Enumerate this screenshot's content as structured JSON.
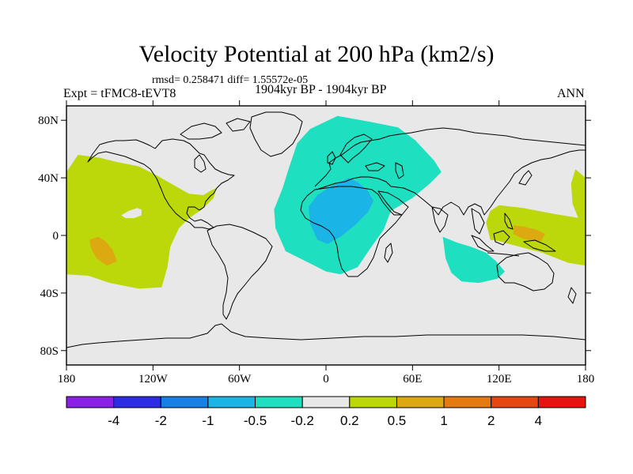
{
  "title": "Velocity Potential at 200 hPa (km2/s)",
  "stats_line": "rmsd= 0.258471 diff= 1.55572e-05",
  "left_label": "Expt = tFMC8-tEVT8",
  "center_label": "1904kyr BP - 1904kyr BP",
  "right_label": "ANN",
  "colors": {
    "background_field": "#e8e8e8",
    "pos_0_2_to_0_5": "#bcd70a",
    "pos_0_5_to_1": "#dcaa10",
    "neg_0_5_to_0_2": "#1ee0c0",
    "neg_1_to_0_5": "#1ab4e6"
  },
  "chart_data": {
    "type": "contour-map",
    "projection": "cylindrical-equidistant",
    "lon_range": [
      -180,
      180
    ],
    "lat_range": [
      -90,
      90
    ],
    "x_ticks": [
      {
        "lon": -180,
        "label": "180"
      },
      {
        "lon": -120,
        "label": "120W"
      },
      {
        "lon": -60,
        "label": "60W"
      },
      {
        "lon": 0,
        "label": "0"
      },
      {
        "lon": 60,
        "label": "60E"
      },
      {
        "lon": 120,
        "label": "120E"
      },
      {
        "lon": 180,
        "label": "180"
      }
    ],
    "y_ticks": [
      {
        "lat": 80,
        "label": "80N"
      },
      {
        "lat": 40,
        "label": "40N"
      },
      {
        "lat": 0,
        "label": "0"
      },
      {
        "lat": -40,
        "label": "40S"
      },
      {
        "lat": -80,
        "label": "80S"
      }
    ],
    "colorbar": {
      "colors": [
        "#8a1fe8",
        "#2c2ce6",
        "#1680e6",
        "#1ab4e6",
        "#1ee0c0",
        "#e8e8e8",
        "#bcd70a",
        "#dcaa10",
        "#e67a10",
        "#e64610",
        "#e61410"
      ],
      "labels": [
        "-4",
        "-2",
        "-1",
        "-0.5",
        "-0.2",
        "0.2",
        "0.5",
        "1",
        "2",
        "4"
      ]
    },
    "regions": [
      {
        "name": "pacific-positive",
        "level": "0.2 to 0.5",
        "color": "#bcd70a",
        "lonlat": [
          [
            -180,
            44
          ],
          [
            -172,
            56
          ],
          [
            -157,
            54
          ],
          [
            -145,
            51
          ],
          [
            -130,
            48
          ],
          [
            -118,
            42
          ],
          [
            -104,
            34
          ],
          [
            -95,
            29
          ],
          [
            -85,
            28
          ],
          [
            -80,
            31
          ],
          [
            -76,
            33
          ],
          [
            -78,
            26
          ],
          [
            -86,
            18
          ],
          [
            -95,
            12
          ],
          [
            -102,
            5
          ],
          [
            -108,
            -8
          ],
          [
            -110,
            -22
          ],
          [
            -114,
            -36
          ],
          [
            -130,
            -37
          ],
          [
            -150,
            -33
          ],
          [
            -165,
            -28
          ],
          [
            -180,
            -27
          ]
        ]
      },
      {
        "name": "pacific-positive-east-edge",
        "level": "0.2 to 0.5",
        "color": "#bcd70a",
        "lonlat": [
          [
            180,
            40
          ],
          [
            173,
            46
          ],
          [
            170,
            36
          ],
          [
            171,
            22
          ],
          [
            175,
            12
          ],
          [
            180,
            9
          ]
        ]
      },
      {
        "name": "west-pacific-positive",
        "level": "0.2 to 0.5",
        "color": "#bcd70a",
        "lonlat": [
          [
            120,
            21
          ],
          [
            137,
            19
          ],
          [
            158,
            15
          ],
          [
            176,
            12
          ],
          [
            180,
            9
          ],
          [
            180,
            -21
          ],
          [
            168,
            -19
          ],
          [
            150,
            -12
          ],
          [
            135,
            -8
          ],
          [
            120,
            -4
          ],
          [
            114,
            -3
          ],
          [
            111,
            9
          ],
          [
            114,
            17
          ]
        ]
      },
      {
        "name": "atlantic-eurasia-negative",
        "level": "-0.5 to -0.2",
        "color": "#1ee0c0",
        "lonlat": [
          [
            -20,
            64
          ],
          [
            -11,
            74
          ],
          [
            8,
            83
          ],
          [
            30,
            79
          ],
          [
            50,
            75
          ],
          [
            62,
            66
          ],
          [
            75,
            52
          ],
          [
            80,
            44
          ],
          [
            72,
            36
          ],
          [
            60,
            26
          ],
          [
            45,
            17
          ],
          [
            40,
            4
          ],
          [
            30,
            -10
          ],
          [
            22,
            -22
          ],
          [
            10,
            -27
          ],
          [
            0,
            -25
          ],
          [
            -14,
            -18
          ],
          [
            -28,
            -11
          ],
          [
            -35,
            5
          ],
          [
            -36,
            18
          ],
          [
            -30,
            33
          ],
          [
            -26,
            46
          ]
        ]
      },
      {
        "name": "indian-ocean-negative",
        "level": "-0.5 to -0.2",
        "color": "#1ee0c0",
        "lonlat": [
          [
            81,
            -1
          ],
          [
            91,
            -5
          ],
          [
            101,
            -8
          ],
          [
            111,
            -12
          ],
          [
            118,
            -18
          ],
          [
            124,
            -25
          ],
          [
            119,
            -30
          ],
          [
            106,
            -33
          ],
          [
            94,
            -32
          ],
          [
            87,
            -26
          ],
          [
            83,
            -16
          ]
        ]
      },
      {
        "name": "africa-negative-core",
        "level": "-1 to -0.5",
        "color": "#1ab4e6",
        "lonlat": [
          [
            -12,
            20
          ],
          [
            -6,
            28
          ],
          [
            5,
            35
          ],
          [
            16,
            40
          ],
          [
            22,
            37
          ],
          [
            29,
            31
          ],
          [
            33,
            24
          ],
          [
            29,
            16
          ],
          [
            20,
            7
          ],
          [
            10,
            -1
          ],
          [
            1,
            -6
          ],
          [
            -6,
            -3
          ],
          [
            -11,
            8
          ]
        ]
      },
      {
        "name": "pacific-positive-core",
        "level": "0.5 to 1",
        "color": "#dcaa10",
        "lonlat": [
          [
            -164,
            -3
          ],
          [
            -158,
            -1
          ],
          [
            -153,
            -4
          ],
          [
            -148,
            -10
          ],
          [
            -145,
            -18
          ],
          [
            -152,
            -21
          ],
          [
            -159,
            -16
          ],
          [
            -163,
            -9
          ]
        ]
      },
      {
        "name": "west-pacific-positive-core",
        "level": "0.5 to 1",
        "color": "#dcaa10",
        "lonlat": [
          [
            130,
            7
          ],
          [
            138,
            6
          ],
          [
            146,
            4
          ],
          [
            152,
            1
          ],
          [
            149,
            -4
          ],
          [
            143,
            -4
          ],
          [
            136,
            -2
          ],
          [
            130,
            1
          ]
        ]
      },
      {
        "name": "north-pacific-negative-hole",
        "level": "-0.2 to 0.2",
        "color": "#e8e8e8",
        "lonlat": [
          [
            -137,
            17
          ],
          [
            -131,
            19
          ],
          [
            -128,
            18
          ],
          [
            -128,
            14
          ],
          [
            -133,
            12
          ],
          [
            -139,
            12
          ],
          [
            -142,
            14
          ]
        ]
      }
    ]
  }
}
